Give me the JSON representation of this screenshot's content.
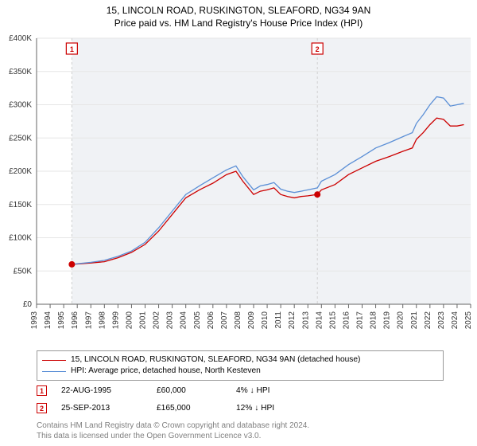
{
  "titles": {
    "line1": "15, LINCOLN ROAD, RUSKINGTON, SLEAFORD, NG34 9AN",
    "line2": "Price paid vs. HM Land Registry's House Price Index (HPI)"
  },
  "chart": {
    "type": "line",
    "background_color": "#ffffff",
    "plot_band_color": "#f0f2f5",
    "grid_color": "#e6e6e6",
    "axis_color": "#666666",
    "marker_line_color": "#d0d0d0",
    "x": {
      "min": 1993,
      "max": 2025,
      "tick_step": 1,
      "labels": [
        "1993",
        "1994",
        "1995",
        "1996",
        "1997",
        "1998",
        "1999",
        "2000",
        "2001",
        "2002",
        "2003",
        "2004",
        "2005",
        "2006",
        "2007",
        "2008",
        "2009",
        "2010",
        "2011",
        "2012",
        "2013",
        "2014",
        "2015",
        "2016",
        "2017",
        "2018",
        "2019",
        "2020",
        "2021",
        "2022",
        "2023",
        "2024",
        "2025"
      ],
      "label_fontsize": 10
    },
    "y": {
      "min": 0,
      "max": 400000,
      "tick_step": 50000,
      "labels": [
        "£0",
        "£50K",
        "£100K",
        "£150K",
        "£200K",
        "£250K",
        "£300K",
        "£350K",
        "£400K"
      ],
      "label_fontsize": 10
    },
    "series": [
      {
        "name": "price_paid",
        "color": "#cc0000",
        "width": 1.3,
        "points": [
          [
            1995.6,
            60000
          ],
          [
            1996,
            60500
          ],
          [
            1997,
            62000
          ],
          [
            1998,
            64000
          ],
          [
            1999,
            70000
          ],
          [
            2000,
            78000
          ],
          [
            2001,
            90000
          ],
          [
            2002,
            110000
          ],
          [
            2003,
            135000
          ],
          [
            2004,
            160000
          ],
          [
            2005,
            172000
          ],
          [
            2006,
            182000
          ],
          [
            2007,
            195000
          ],
          [
            2007.7,
            200000
          ],
          [
            2008.2,
            185000
          ],
          [
            2009,
            165000
          ],
          [
            2009.5,
            170000
          ],
          [
            2010,
            172000
          ],
          [
            2010.5,
            175000
          ],
          [
            2011,
            165000
          ],
          [
            2011.5,
            162000
          ],
          [
            2012,
            160000
          ],
          [
            2012.5,
            162000
          ],
          [
            2013,
            163000
          ],
          [
            2013.7,
            165000
          ],
          [
            2014,
            172000
          ],
          [
            2015,
            180000
          ],
          [
            2016,
            195000
          ],
          [
            2017,
            205000
          ],
          [
            2018,
            215000
          ],
          [
            2019,
            222000
          ],
          [
            2020,
            230000
          ],
          [
            2020.7,
            235000
          ],
          [
            2021,
            248000
          ],
          [
            2021.5,
            258000
          ],
          [
            2022,
            270000
          ],
          [
            2022.5,
            280000
          ],
          [
            2023,
            278000
          ],
          [
            2023.5,
            268000
          ],
          [
            2024,
            268000
          ],
          [
            2024.5,
            270000
          ]
        ]
      },
      {
        "name": "hpi",
        "color": "#5b8fd6",
        "width": 1.3,
        "points": [
          [
            1995.6,
            60000
          ],
          [
            1996,
            61000
          ],
          [
            1997,
            63000
          ],
          [
            1998,
            66000
          ],
          [
            1999,
            72000
          ],
          [
            2000,
            80000
          ],
          [
            2001,
            93000
          ],
          [
            2002,
            115000
          ],
          [
            2003,
            140000
          ],
          [
            2004,
            165000
          ],
          [
            2005,
            178000
          ],
          [
            2006,
            190000
          ],
          [
            2007,
            202000
          ],
          [
            2007.7,
            208000
          ],
          [
            2008.2,
            192000
          ],
          [
            2009,
            172000
          ],
          [
            2009.5,
            178000
          ],
          [
            2010,
            180000
          ],
          [
            2010.5,
            183000
          ],
          [
            2011,
            173000
          ],
          [
            2011.5,
            170000
          ],
          [
            2012,
            168000
          ],
          [
            2012.5,
            170000
          ],
          [
            2013,
            172000
          ],
          [
            2013.7,
            175000
          ],
          [
            2014,
            185000
          ],
          [
            2015,
            195000
          ],
          [
            2016,
            210000
          ],
          [
            2017,
            222000
          ],
          [
            2018,
            235000
          ],
          [
            2019,
            243000
          ],
          [
            2020,
            252000
          ],
          [
            2020.7,
            258000
          ],
          [
            2021,
            272000
          ],
          [
            2021.5,
            285000
          ],
          [
            2022,
            300000
          ],
          [
            2022.5,
            312000
          ],
          [
            2023,
            310000
          ],
          [
            2023.5,
            298000
          ],
          [
            2024,
            300000
          ],
          [
            2024.5,
            302000
          ]
        ]
      }
    ],
    "sale_markers": [
      {
        "n": "1",
        "x": 1995.6,
        "y": 60000,
        "color": "#cc0000"
      },
      {
        "n": "2",
        "x": 2013.7,
        "y": 165000,
        "color": "#cc0000"
      }
    ]
  },
  "legend": {
    "series1": {
      "label": "15, LINCOLN ROAD, RUSKINGTON, SLEAFORD, NG34 9AN (detached house)",
      "color": "#cc0000"
    },
    "series2": {
      "label": "HPI: Average price, detached house, North Kesteven",
      "color": "#5b8fd6"
    }
  },
  "sales": [
    {
      "n": "1",
      "color": "#cc0000",
      "date": "22-AUG-1995",
      "price": "£60,000",
      "pct": "4% ↓ HPI"
    },
    {
      "n": "2",
      "color": "#cc0000",
      "date": "25-SEP-2013",
      "price": "£165,000",
      "pct": "12% ↓ HPI"
    }
  ],
  "footnote": {
    "line1": "Contains HM Land Registry data © Crown copyright and database right 2024.",
    "line2": "This data is licensed under the Open Government Licence v3.0."
  }
}
